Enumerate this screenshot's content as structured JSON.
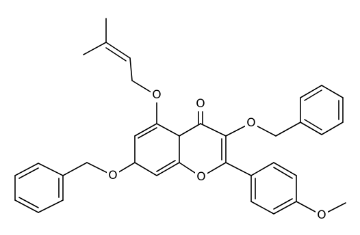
{
  "atoms": [
    {
      "label": "O"
    },
    {
      "label": "O"
    },
    {
      "label": "O"
    },
    {
      "label": "O"
    },
    {
      "label": "O"
    },
    {
      "label": "O"
    }
  ]
}
